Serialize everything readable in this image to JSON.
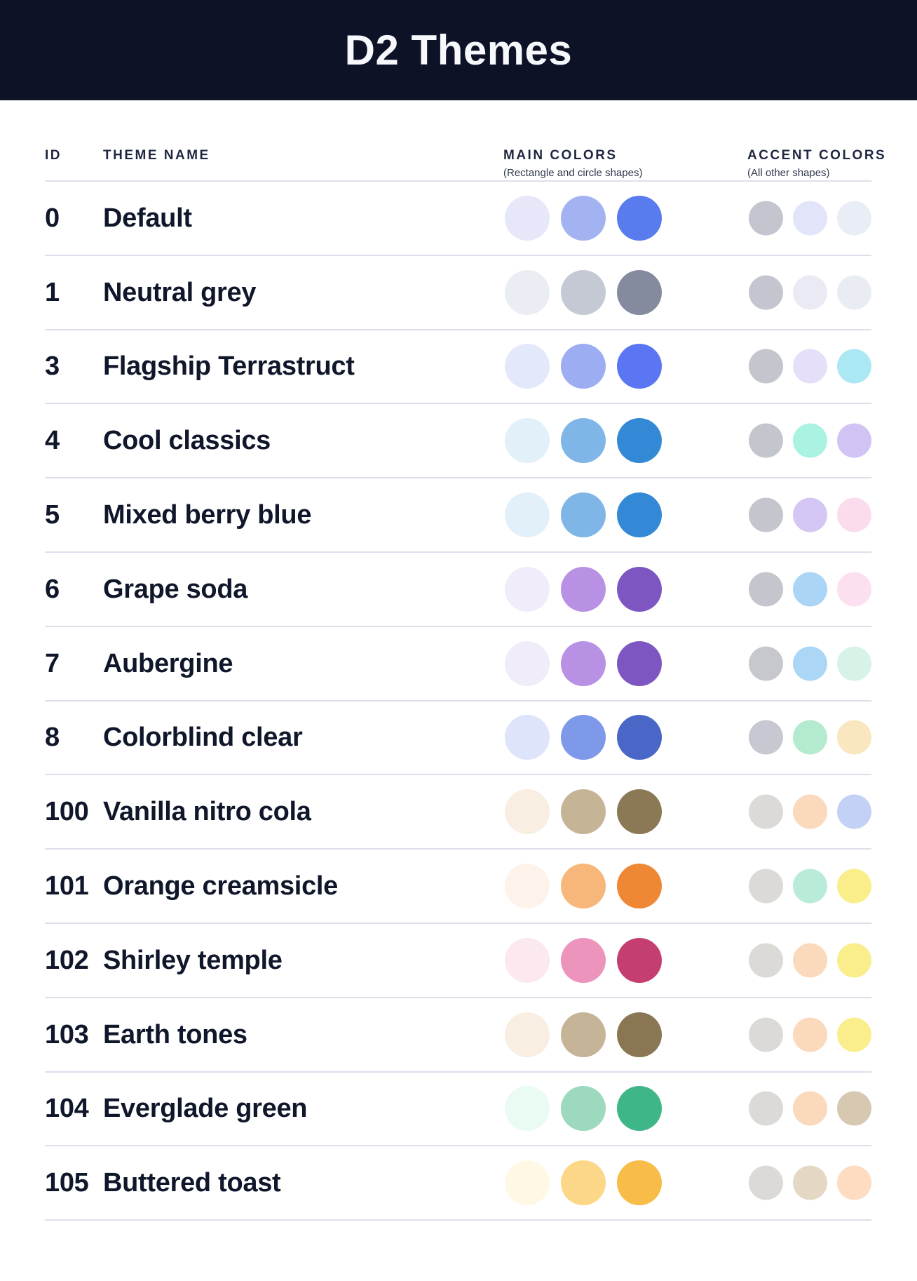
{
  "title": "D2 Themes",
  "columns": {
    "id": "ID",
    "theme_name": "THEME NAME",
    "main_colors": "MAIN COLORS",
    "main_colors_sub": "(Rectangle and circle shapes)",
    "accent_colors": "ACCENT COLORS",
    "accent_colors_sub": "(All other shapes)"
  },
  "rows": [
    {
      "id": "0",
      "name": "Default",
      "main": [
        "#E6E8F9",
        "#A3B2F1",
        "#587BEE"
      ],
      "accent": [
        "#C3C5CF",
        "#E2E5FA",
        "#E9EDF6"
      ]
    },
    {
      "id": "1",
      "name": "Neutral grey",
      "main": [
        "#EBEDF4",
        "#C5C9D3",
        "#858B9F"
      ],
      "accent": [
        "#C3C6CF",
        "#E9EAF3",
        "#EAECF3"
      ]
    },
    {
      "id": "3",
      "name": "Flagship Terrastruct",
      "main": [
        "#E4E8FB",
        "#9DADF2",
        "#5B76F2"
      ],
      "accent": [
        "#C4C6CE",
        "#E5DFF9",
        "#ACE8F4"
      ]
    },
    {
      "id": "4",
      "name": "Cool classics",
      "main": [
        "#E2F0FA",
        "#80B6E7",
        "#3389D5"
      ],
      "accent": [
        "#C4C6CD",
        "#AAF2E2",
        "#D1C3F4"
      ]
    },
    {
      "id": "5",
      "name": "Mixed berry blue",
      "main": [
        "#E2F0FA",
        "#80B6E7",
        "#3389D5"
      ],
      "accent": [
        "#C5C6CD",
        "#D4C7F3",
        "#FBDCEC"
      ]
    },
    {
      "id": "6",
      "name": "Grape soda",
      "main": [
        "#F1ECFA",
        "#B891E4",
        "#7D56C1"
      ],
      "accent": [
        "#C5C6CD",
        "#AAD5F6",
        "#FCE0F0"
      ]
    },
    {
      "id": "7",
      "name": "Aubergine",
      "main": [
        "#F1ECFA",
        "#B891E4",
        "#7D56C1"
      ],
      "accent": [
        "#C7C8CE",
        "#ABD6F6",
        "#D7F3E8"
      ]
    },
    {
      "id": "8",
      "name": "Colorblind clear",
      "main": [
        "#DEE5FA",
        "#7E99E9",
        "#4A66C7"
      ],
      "accent": [
        "#C7C8D1",
        "#B4EACD",
        "#FAE7BF"
      ]
    },
    {
      "id": "100",
      "name": "Vanilla nitro cola",
      "main": [
        "#F8EEE1",
        "#C6B497",
        "#8B7855"
      ],
      "accent": [
        "#DCDAD6",
        "#FBD9BC",
        "#C2D1F4"
      ]
    },
    {
      "id": "101",
      "name": "Orange creamsicle",
      "main": [
        "#FEF3EB",
        "#F8B77A",
        "#EF8834"
      ],
      "accent": [
        "#DCDAD6",
        "#B9ECD8",
        "#FAEE8A"
      ]
    },
    {
      "id": "102",
      "name": "Shirley temple",
      "main": [
        "#FCE9F0",
        "#ED94BD",
        "#C53E72"
      ],
      "accent": [
        "#DCDAD6",
        "#FBD9BC",
        "#FAEE8C"
      ]
    },
    {
      "id": "103",
      "name": "Earth tones",
      "main": [
        "#F8EEE1",
        "#C6B498",
        "#8B7653"
      ],
      "accent": [
        "#DCDAD6",
        "#FBD9BC",
        "#FAEE8C"
      ]
    },
    {
      "id": "104",
      "name": "Everglade green",
      "main": [
        "#E9FBF2",
        "#9CD9BE",
        "#3EB687"
      ],
      "accent": [
        "#DCDAD6",
        "#FBD9BC",
        "#D7C8B2"
      ]
    },
    {
      "id": "105",
      "name": "Buttered toast",
      "main": [
        "#FFF8E5",
        "#FDD788",
        "#F8BD48"
      ],
      "accent": [
        "#DCDAD6",
        "#E4D8C5",
        "#FDDCC1"
      ]
    }
  ],
  "colors": {
    "header_bg": "#0E1226",
    "title_text": "#F7F8FC",
    "body_text": "#10172B",
    "header_text": "#1F2740",
    "subtitle_text": "#323A50",
    "divider": "#DCE0EB"
  }
}
